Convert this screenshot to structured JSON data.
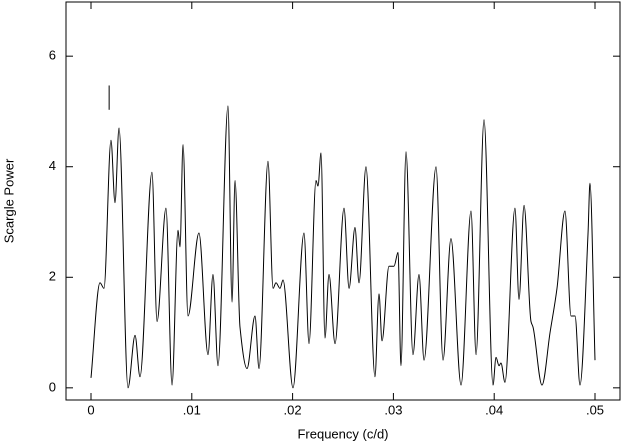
{
  "chart_data": {
    "type": "line",
    "x_label": "Frequency (c/d)",
    "y_label": "Scargle Power",
    "x": [
      0,
      0.00089,
      0.00129,
      0.00198,
      0.00238,
      0.00278,
      0.00367,
      0.00437,
      0.00486,
      0.00605,
      0.00655,
      0.00744,
      0.00804,
      0.00863,
      0.00883,
      0.00913,
      0.00962,
      0.01071,
      0.01161,
      0.0121,
      0.0126,
      0.01359,
      0.01399,
      0.01429,
      0.01478,
      0.01548,
      0.01627,
      0.01667,
      0.01756,
      0.01806,
      0.01835,
      0.01875,
      0.01905,
      0.02004,
      0.02113,
      0.02163,
      0.02232,
      0.02252,
      0.02282,
      0.02321,
      0.02361,
      0.02421,
      0.0251,
      0.0256,
      0.02619,
      0.02659,
      0.02728,
      0.02817,
      0.02857,
      0.02887,
      0.02956,
      0.03006,
      0.03046,
      0.03075,
      0.03125,
      0.03194,
      0.03254,
      0.03304,
      0.03423,
      0.03492,
      0.03571,
      0.03671,
      0.0377,
      0.0382,
      0.03899,
      0.03988,
      0.04018,
      0.04048,
      0.04067,
      0.04107,
      0.04206,
      0.04246,
      0.04296,
      0.04365,
      0.04385,
      0.04474,
      0.04554,
      0.04623,
      0.04702,
      0.04762,
      0.04802,
      0.04851,
      0.04931,
      0.0495,
      0.05
    ],
    "series": [
      {
        "color": "#000000",
        "values": [
          0.18,
          1.9,
          1.8,
          4.48,
          3.35,
          4.7,
          0.0,
          0.95,
          0.2,
          3.9,
          1.2,
          3.25,
          0.05,
          2.85,
          2.55,
          4.4,
          1.3,
          2.8,
          0.6,
          2.05,
          0.4,
          5.1,
          1.55,
          3.75,
          1.1,
          0.35,
          1.3,
          0.35,
          4.1,
          1.8,
          1.9,
          1.8,
          1.95,
          0.0,
          2.8,
          0.8,
          3.75,
          3.65,
          4.25,
          0.9,
          2.05,
          0.8,
          3.25,
          1.8,
          2.9,
          1.9,
          4.0,
          0.2,
          1.7,
          0.85,
          2.2,
          2.2,
          2.45,
          0.4,
          4.27,
          0.6,
          2.05,
          0.5,
          4.0,
          0.5,
          2.7,
          0.05,
          3.2,
          0.6,
          4.85,
          0.05,
          0.55,
          0.4,
          0.45,
          0.1,
          3.25,
          1.6,
          3.3,
          1.2,
          1.1,
          0.05,
          1.0,
          1.8,
          3.2,
          1.3,
          1.3,
          0.05,
          2.8,
          3.7,
          0.5
        ]
      }
    ],
    "marker_x": 0.0018,
    "marker_y": [
      5.03,
      5.47
    ],
    "xlim": [
      -0.00248,
      0.05248
    ],
    "ylim": [
      -0.22,
      6.98
    ],
    "xticks": [
      0,
      {
        "value": 0.01,
        "label": ".01"
      },
      {
        "value": 0.02,
        "label": ".02"
      },
      {
        "value": 0.03,
        "label": ".03"
      },
      {
        "value": 0.04,
        "label": ".04"
      },
      {
        "value": 0.05,
        "label": ".05"
      }
    ],
    "yticks": [
      0,
      2,
      4,
      6
    ]
  }
}
